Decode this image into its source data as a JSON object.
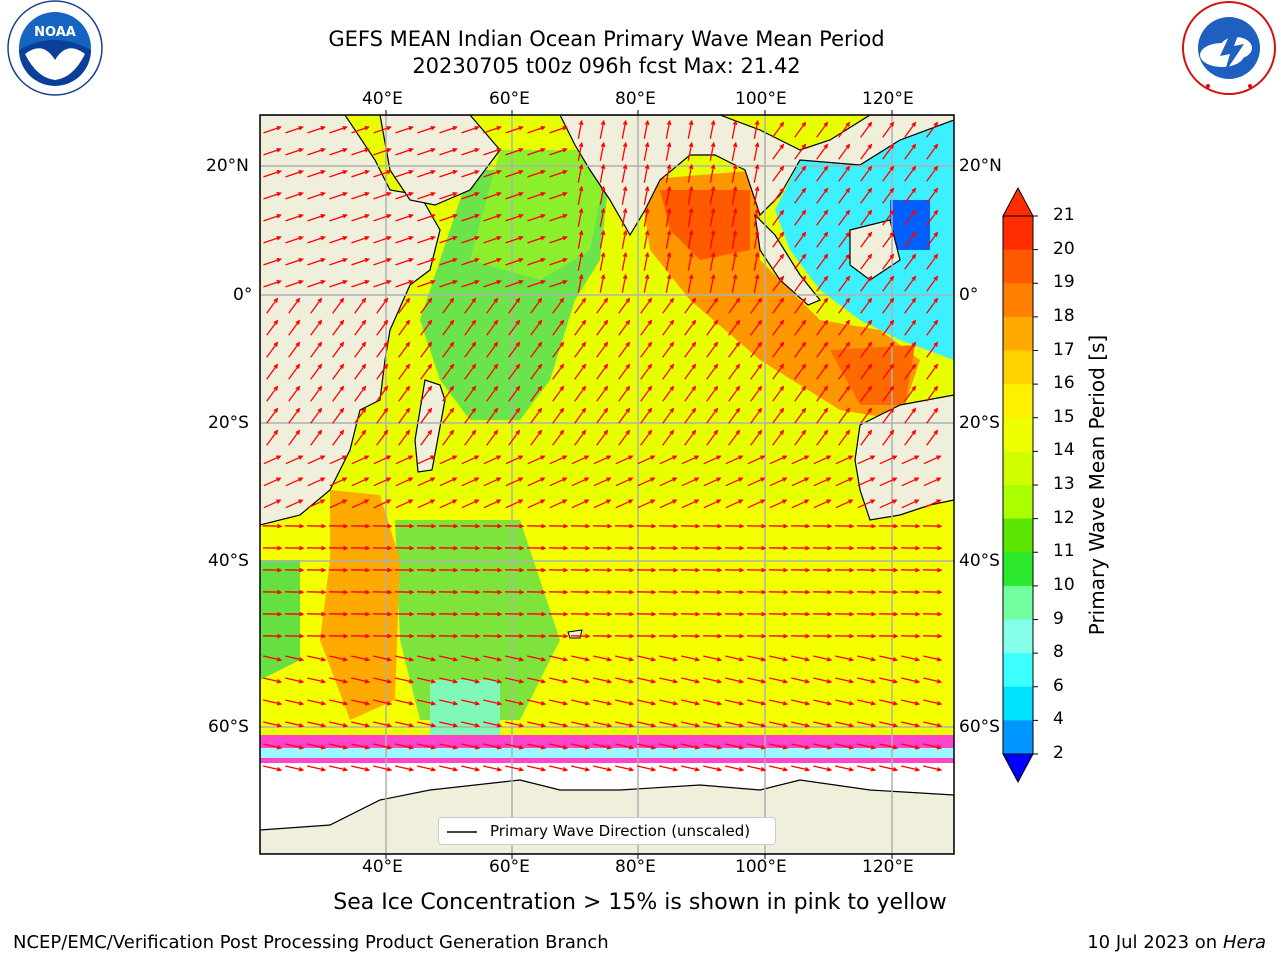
{
  "title_line1": "GEFS MEAN Indian Ocean Primary Wave Mean Period",
  "title_line2": "20230705 t00z 096h fcst   Max: 21.42",
  "logos": {
    "left": "NOAA",
    "left_ring": "NATIONAL OCEANIC AND ATMOSPHERIC ADMINISTRATION · U.S. DEPARTMENT OF COMMERCE",
    "right_ring": "NATIONAL WEATHER SERVICE"
  },
  "axes": {
    "lon_ticks": [
      "40°E",
      "60°E",
      "80°E",
      "100°E",
      "120°E"
    ],
    "lat_ticks": [
      "20°N",
      "0°",
      "20°S",
      "40°S",
      "60°S"
    ]
  },
  "colorbar": {
    "label": "Primary Wave Mean Period [s]",
    "ticks": [
      "21",
      "20",
      "19",
      "18",
      "17",
      "16",
      "15",
      "14",
      "13",
      "12",
      "11",
      "10",
      "9",
      "8",
      "6",
      "4",
      "2"
    ],
    "colors": [
      "#ff2d00",
      "#ff5a00",
      "#ff8000",
      "#ffaa00",
      "#ffd200",
      "#fff000",
      "#f0ff00",
      "#d2ff00",
      "#aaff00",
      "#5ae600",
      "#2ce82c",
      "#73ffa0",
      "#86ffea",
      "#3cffff",
      "#00e1ff",
      "#0096ff",
      "#0014ff"
    ]
  },
  "legend": {
    "label": "Primary Wave Direction (unscaled)"
  },
  "note": "Sea Ice Concentration > 15% is shown in pink to yellow",
  "footer": {
    "left": "NCEP/EMC/Verification Post Processing Product Generation Branch",
    "right_date": "10 Jul 2023 on ",
    "right_host": "Hera"
  },
  "colors": {
    "land": "#efefdc",
    "ice": "#ff44cc",
    "arrow": "#ff0000",
    "grid": "#b0b0b0"
  }
}
